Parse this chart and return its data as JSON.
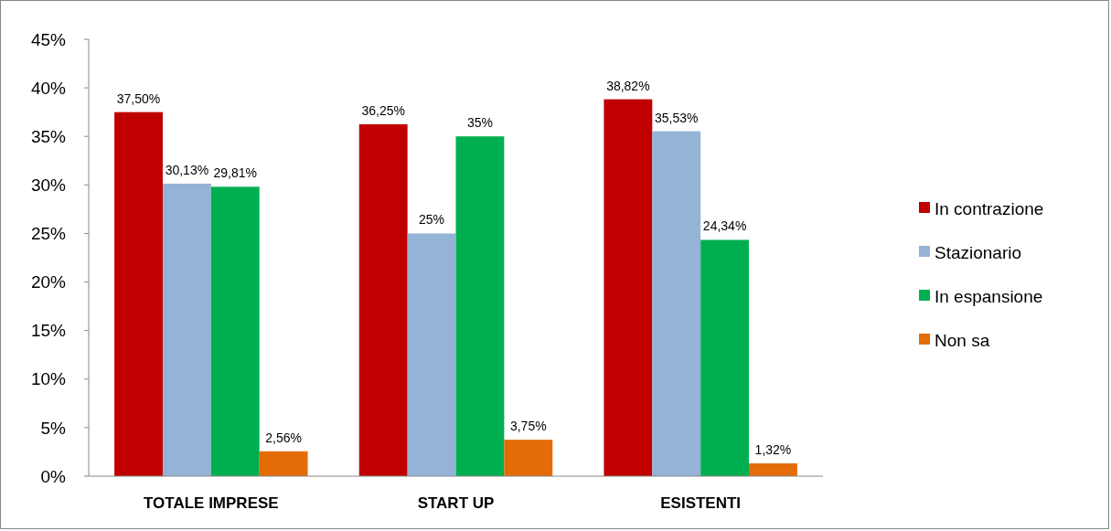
{
  "chart_data": {
    "type": "bar",
    "categories": [
      "TOTALE IMPRESE",
      "START UP",
      "ESISTENTI"
    ],
    "series": [
      {
        "name": "In contrazione",
        "color": "#c00000",
        "values": [
          37.5,
          36.25,
          38.82
        ],
        "value_labels": [
          "37,50%",
          "36,25%",
          "38,82%"
        ]
      },
      {
        "name": "Stazionario",
        "color": "#95b3d7",
        "values": [
          30.13,
          25,
          35.53
        ],
        "value_labels": [
          "30,13%",
          "25%",
          "35,53%"
        ]
      },
      {
        "name": "In espansione",
        "color": "#00b050",
        "values": [
          29.81,
          35,
          24.34
        ],
        "value_labels": [
          "29,81%",
          "35%",
          "24,34%"
        ]
      },
      {
        "name": "Non sa",
        "color": "#e36c09",
        "values": [
          2.56,
          3.75,
          1.32
        ],
        "value_labels": [
          "2,56%",
          "3,75%",
          "1,32%"
        ]
      }
    ],
    "ylim": [
      0,
      45
    ],
    "yticks": [
      {
        "value": 0,
        "label": "0%"
      },
      {
        "value": 5,
        "label": "5%"
      },
      {
        "value": 10,
        "label": "10%"
      },
      {
        "value": 15,
        "label": "15%"
      },
      {
        "value": 20,
        "label": "20%"
      },
      {
        "value": 25,
        "label": "25%"
      },
      {
        "value": 30,
        "label": "30%"
      },
      {
        "value": 35,
        "label": "35%"
      },
      {
        "value": 40,
        "label": "40%"
      },
      {
        "value": 45,
        "label": "45%"
      }
    ],
    "grid": false,
    "legend": "right"
  }
}
